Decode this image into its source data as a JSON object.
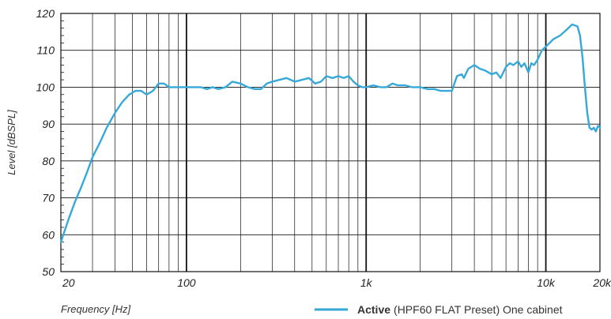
{
  "chart_data": {
    "type": "line",
    "title": "",
    "xlabel": "Frequency [Hz]",
    "ylabel": "Level [dBSPL]",
    "xscale": "log",
    "xlim": [
      20,
      20000
    ],
    "ylim": [
      50,
      120
    ],
    "grid": true,
    "legend_position": "bottom-right",
    "x_tick_labels": [
      {
        "value": 20,
        "label": "20"
      },
      {
        "value": 100,
        "label": "100"
      },
      {
        "value": 1000,
        "label": "1k"
      },
      {
        "value": 10000,
        "label": "10k"
      },
      {
        "value": 20000,
        "label": "20k"
      }
    ],
    "y_tick_labels": [
      {
        "value": 50,
        "label": "50"
      },
      {
        "value": 60,
        "label": "60"
      },
      {
        "value": 70,
        "label": "70"
      },
      {
        "value": 80,
        "label": "80"
      },
      {
        "value": 90,
        "label": "90"
      },
      {
        "value": 100,
        "label": "100"
      },
      {
        "value": 110,
        "label": "110"
      },
      {
        "value": 120,
        "label": "120"
      }
    ],
    "series": [
      {
        "name_bold": "Active",
        "name_rest": "(HPF60 FLAT Preset) One cabinet",
        "color": "#36a9d9",
        "x": [
          20,
          22,
          24,
          26,
          28,
          30,
          33,
          36,
          40,
          44,
          48,
          52,
          56,
          60,
          65,
          70,
          75,
          80,
          85,
          90,
          95,
          100,
          110,
          120,
          130,
          140,
          150,
          165,
          180,
          200,
          220,
          240,
          260,
          280,
          300,
          330,
          360,
          400,
          440,
          480,
          520,
          560,
          600,
          650,
          700,
          750,
          800,
          850,
          900,
          950,
          1000,
          1100,
          1200,
          1300,
          1400,
          1500,
          1650,
          1800,
          2000,
          2200,
          2400,
          2600,
          2800,
          3000,
          3200,
          3400,
          3500,
          3700,
          4000,
          4300,
          4600,
          5000,
          5300,
          5600,
          6000,
          6300,
          6600,
          7000,
          7300,
          7600,
          8000,
          8300,
          8600,
          9000,
          9500,
          10000,
          10500,
          11000,
          12000,
          13000,
          14000,
          15000,
          15500,
          16000,
          16500,
          17000,
          17500,
          18000,
          18500,
          19000,
          19500,
          20000
        ],
        "y": [
          58,
          64,
          69,
          73,
          77,
          81,
          85,
          89,
          93,
          96,
          98,
          99,
          99,
          98,
          99,
          101,
          101,
          100,
          100,
          100,
          100,
          100,
          100,
          100,
          99.5,
          100,
          99.5,
          100,
          101.5,
          101,
          100,
          99.5,
          99.5,
          101,
          101.5,
          102,
          102.5,
          101.5,
          102,
          102.5,
          101,
          101.5,
          103,
          102.5,
          103,
          102.5,
          103,
          101.5,
          100.5,
          100,
          100,
          100.5,
          100,
          100,
          101,
          100.5,
          100.5,
          100,
          100,
          99.5,
          99.5,
          99,
          99,
          99,
          103,
          103.5,
          102.5,
          105,
          106,
          105,
          104.5,
          103.5,
          104,
          102.5,
          105.5,
          106.5,
          106,
          107,
          105.5,
          106.5,
          104,
          106.5,
          106,
          107.5,
          110,
          111,
          112,
          113,
          114,
          115.5,
          117,
          116.5,
          114,
          108,
          100,
          93,
          89,
          88.5,
          89,
          88,
          89.5,
          89
        ]
      }
    ]
  }
}
